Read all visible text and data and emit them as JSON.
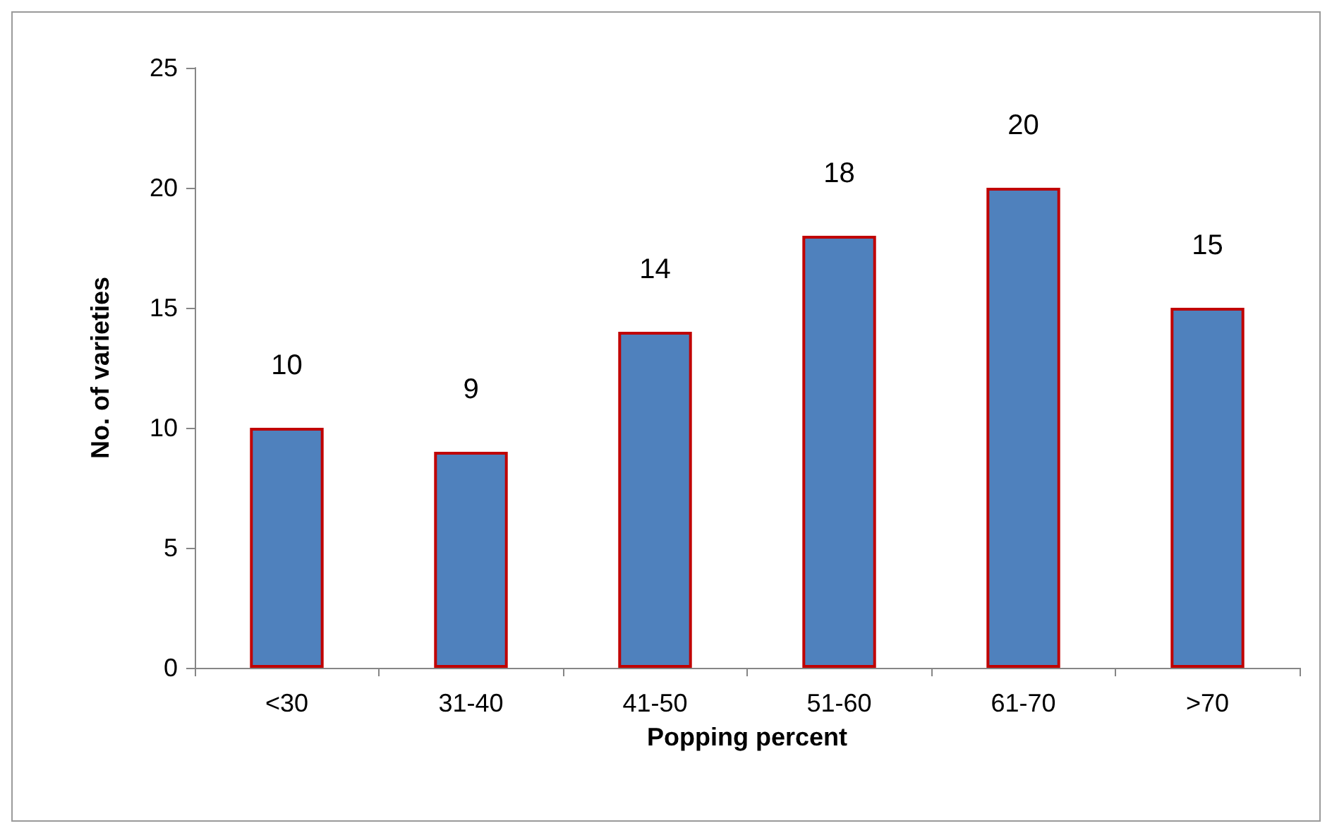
{
  "chart_data": {
    "type": "bar",
    "xlabel": "Popping percent",
    "ylabel": "No. of varieties",
    "categories": [
      "<30",
      "31-40",
      "41-50",
      "51-60",
      "61-70",
      ">70"
    ],
    "values": [
      10,
      9,
      14,
      18,
      20,
      15
    ],
    "color": "#4f81bd",
    "ylim": [
      0,
      25
    ],
    "yticks": [
      0,
      5,
      10,
      15,
      20,
      25
    ],
    "grid": false,
    "data_labels": true
  }
}
